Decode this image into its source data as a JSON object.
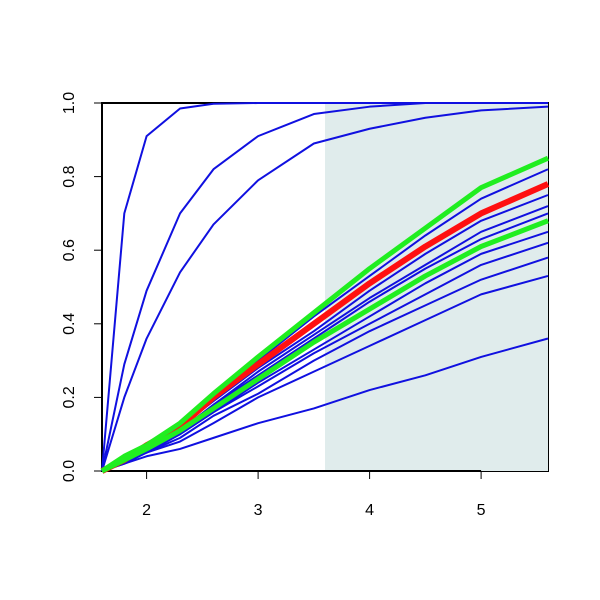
{
  "chart_data": {
    "type": "line",
    "x": [
      1.6,
      1.8,
      2,
      2.3,
      2.6,
      3,
      3.5,
      4,
      4.5,
      5,
      5.6
    ],
    "xlim": [
      1.6,
      5.6
    ],
    "xticks": [
      2,
      3,
      4,
      5
    ],
    "ylim": [
      0,
      1
    ],
    "yticks": [
      {
        "value": 0,
        "label": "0.0"
      },
      {
        "value": 0.2,
        "label": "0.2"
      },
      {
        "value": 0.4,
        "label": "0.4"
      },
      {
        "value": 0.6,
        "label": "0.6"
      },
      {
        "value": 0.8,
        "label": "0.8"
      },
      {
        "value": 1,
        "label": "1.0"
      }
    ],
    "shaded_region": {
      "x": [
        3.6,
        5.6
      ],
      "color": "#e0ecec"
    },
    "series": [
      {
        "color": "#1010e0",
        "width": 2,
        "values": [
          0,
          0.7,
          0.91,
          0.985,
          0.998,
          1,
          1,
          1,
          1,
          1,
          1
        ]
      },
      {
        "color": "#1010e0",
        "width": 2,
        "values": [
          0,
          0.29,
          0.49,
          0.7,
          0.82,
          0.91,
          0.97,
          0.99,
          1,
          1,
          1
        ]
      },
      {
        "color": "#1010e0",
        "width": 2,
        "values": [
          0,
          0.2,
          0.36,
          0.54,
          0.67,
          0.79,
          0.89,
          0.93,
          0.96,
          0.98,
          0.99
        ]
      },
      {
        "color": "#1010e0",
        "width": 2,
        "values": [
          0,
          0.04,
          0.07,
          0.13,
          0.21,
          0.3,
          0.42,
          0.53,
          0.64,
          0.74,
          0.82
        ]
      },
      {
        "color": "#1010e0",
        "width": 2,
        "values": [
          0,
          0.03,
          0.07,
          0.12,
          0.19,
          0.28,
          0.38,
          0.49,
          0.59,
          0.68,
          0.75
        ]
      },
      {
        "color": "#1010e0",
        "width": 2,
        "values": [
          0,
          0.03,
          0.06,
          0.11,
          0.18,
          0.27,
          0.37,
          0.47,
          0.56,
          0.65,
          0.72
        ]
      },
      {
        "color": "#1010e0",
        "width": 2,
        "values": [
          0,
          0.03,
          0.06,
          0.11,
          0.18,
          0.26,
          0.36,
          0.46,
          0.55,
          0.63,
          0.7
        ]
      },
      {
        "color": "#1010e0",
        "width": 2,
        "values": [
          0,
          0.03,
          0.06,
          0.1,
          0.16,
          0.24,
          0.33,
          0.42,
          0.51,
          0.59,
          0.65
        ]
      },
      {
        "color": "#1010e0",
        "width": 2,
        "values": [
          0,
          0.03,
          0.05,
          0.1,
          0.16,
          0.23,
          0.32,
          0.4,
          0.48,
          0.56,
          0.62
        ]
      },
      {
        "color": "#1010e0",
        "width": 2,
        "values": [
          0,
          0.03,
          0.05,
          0.09,
          0.15,
          0.21,
          0.3,
          0.38,
          0.45,
          0.52,
          0.58
        ]
      },
      {
        "color": "#1010e0",
        "width": 2,
        "values": [
          0,
          0.02,
          0.05,
          0.08,
          0.13,
          0.2,
          0.27,
          0.34,
          0.41,
          0.48,
          0.53
        ]
      },
      {
        "color": "#1010e0",
        "width": 2,
        "values": [
          0,
          0.02,
          0.04,
          0.06,
          0.09,
          0.13,
          0.17,
          0.22,
          0.26,
          0.31,
          0.36
        ]
      },
      {
        "color": "#ff1010",
        "width": 6,
        "values": [
          0,
          0.03,
          0.07,
          0.12,
          0.2,
          0.29,
          0.4,
          0.51,
          0.61,
          0.7,
          0.78
        ]
      },
      {
        "color": "#20ee20",
        "width": 5,
        "values": [
          0,
          0.04,
          0.07,
          0.13,
          0.21,
          0.31,
          0.43,
          0.55,
          0.66,
          0.77,
          0.85
        ]
      },
      {
        "color": "#20ee20",
        "width": 5,
        "values": [
          0,
          0.03,
          0.06,
          0.11,
          0.17,
          0.25,
          0.35,
          0.44,
          0.53,
          0.61,
          0.68
        ]
      }
    ]
  }
}
